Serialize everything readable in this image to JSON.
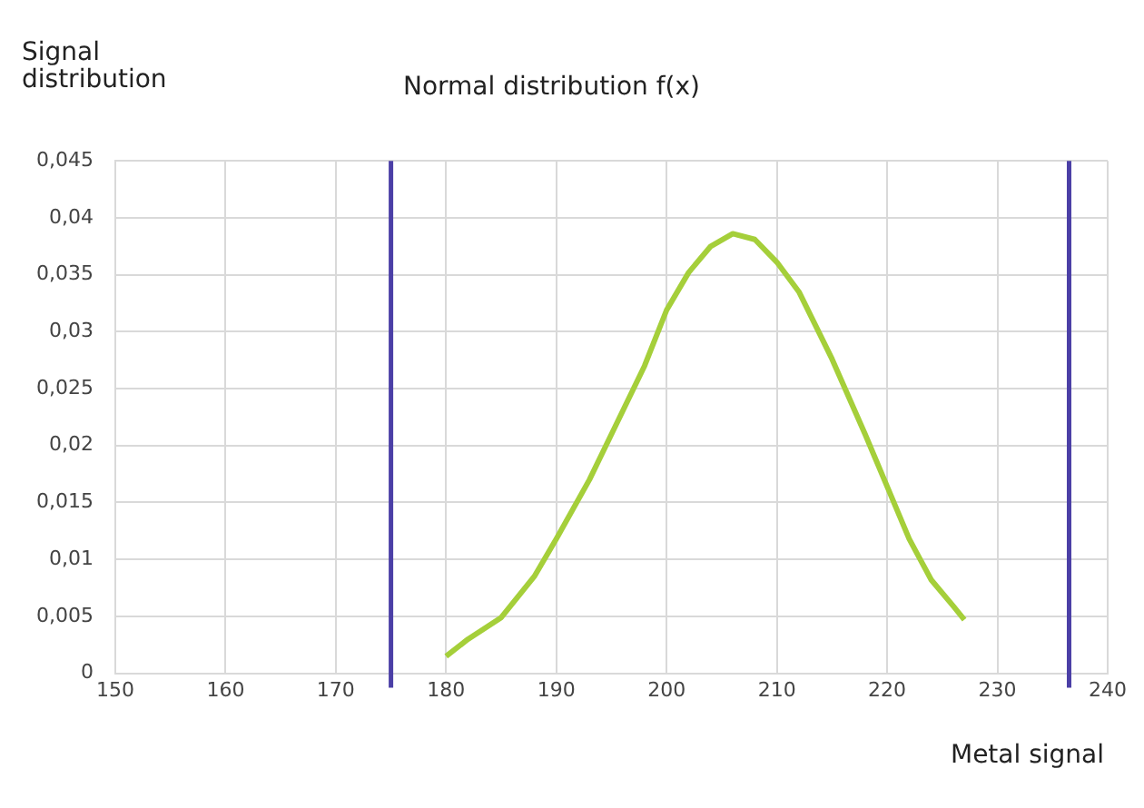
{
  "chart_data": {
    "type": "line",
    "title": "Normal distribution f(x)",
    "ylabel": "Signal\ndistribution",
    "xlabel": "Metal signal",
    "x": [
      180,
      182,
      185,
      188,
      190,
      193,
      195,
      198,
      200,
      202,
      204,
      206,
      208,
      210,
      212,
      215,
      218,
      220,
      222,
      224,
      226,
      227
    ],
    "series": [
      {
        "color": "#a5cf3a",
        "values": [
          0.0015,
          0.003,
          0.0049,
          0.0085,
          0.0118,
          0.017,
          0.021,
          0.027,
          0.0319,
          0.0352,
          0.0375,
          0.0386,
          0.0381,
          0.0361,
          0.0335,
          0.0276,
          0.021,
          0.0164,
          0.0118,
          0.0082,
          0.0059,
          0.0047
        ]
      }
    ],
    "xlim": [
      150,
      240
    ],
    "xticks": [
      150,
      160,
      170,
      180,
      190,
      200,
      210,
      220,
      230,
      240
    ],
    "ylim": [
      0,
      0.045
    ],
    "yticks": [
      0,
      {
        "value": 0.005,
        "label": "0,005"
      },
      {
        "value": 0.01,
        "label": "0,01"
      },
      {
        "value": 0.015,
        "label": "0,015"
      },
      {
        "value": 0.02,
        "label": "0,02"
      },
      {
        "value": 0.025,
        "label": "0,025"
      },
      {
        "value": 0.03,
        "label": "0,03"
      },
      {
        "value": 0.035,
        "label": "0,035"
      },
      {
        "value": 0.04,
        "label": "0,04"
      },
      {
        "value": 0.045,
        "label": "0,045"
      }
    ],
    "ref_lines": [
      {
        "axis": "x",
        "value": 175,
        "color": "#4b3fa6"
      },
      {
        "axis": "x",
        "value": 236.5,
        "color": "#4b3fa6"
      }
    ],
    "grid": true,
    "marker": "none",
    "line_style": "solid"
  }
}
